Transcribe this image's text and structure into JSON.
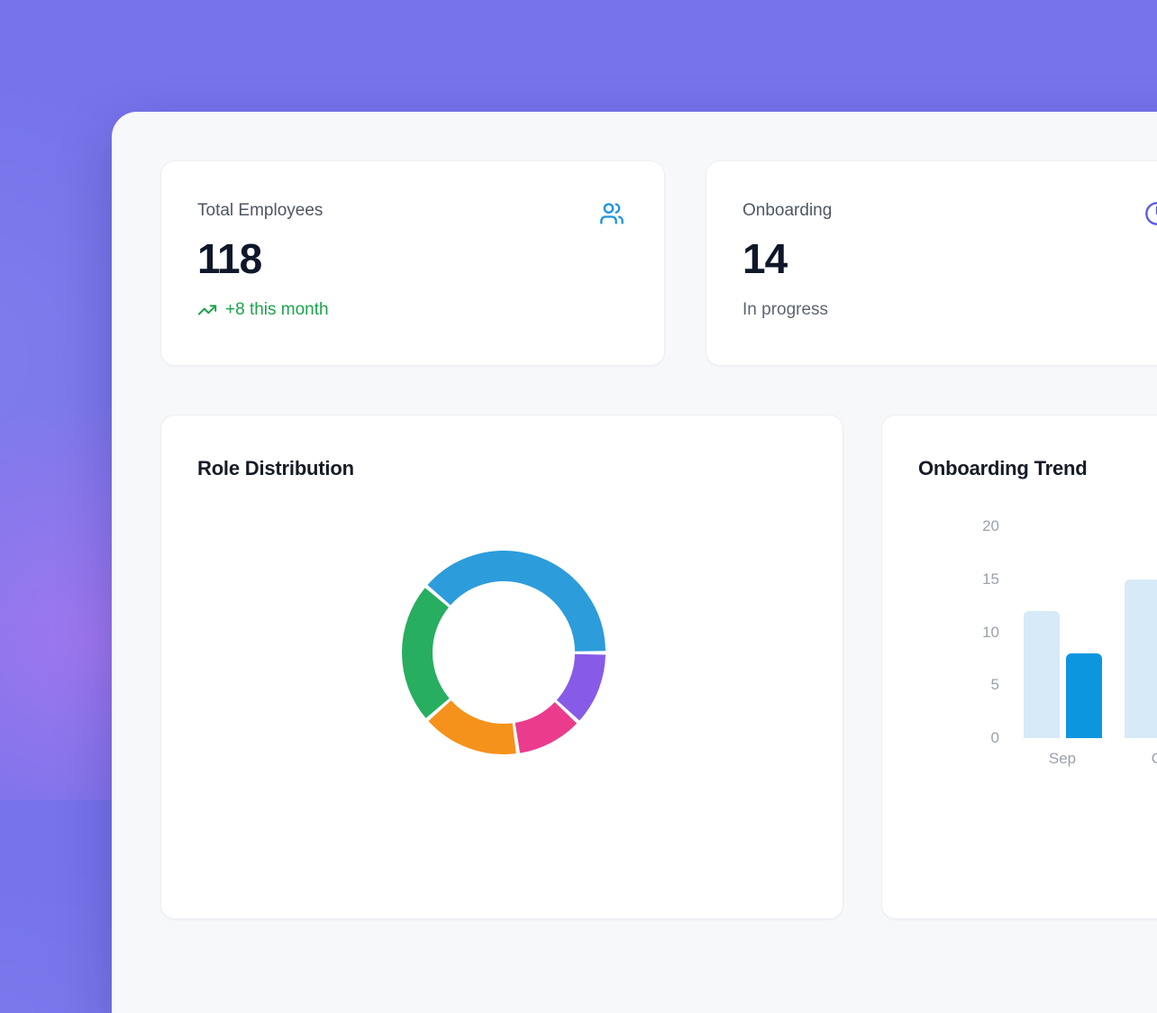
{
  "app": {
    "background_color": "#7673EB",
    "accent_blob_color": "#C67BF2",
    "panel_color": "#F7F8FA",
    "card_color": "#FFFFFF"
  },
  "stats": [
    {
      "label": "Total Employees",
      "value": "118",
      "sub_text": "+8 this month",
      "icon": "users-icon",
      "icon_color": "#1B93E3",
      "sub_color": "#1CA34A"
    },
    {
      "label": "Onboarding",
      "value": "14",
      "sub_text": "In progress",
      "icon": "clock-icon",
      "icon_color": "#5E5AE5",
      "sub_color": "#5D6570"
    }
  ],
  "chart_data": [
    {
      "type": "pie",
      "variant": "donut",
      "title": "Role Distribution",
      "legend": "none",
      "start_angle_deg": -49.5,
      "segments": [
        {
          "label": "segment-blue",
          "color": "#2D9CDB",
          "percent": 38.8
        },
        {
          "label": "segment-purple",
          "color": "#875BE8",
          "percent": 11.9
        },
        {
          "label": "segment-pink",
          "color": "#EB3B8D",
          "percent": 10.8
        },
        {
          "label": "segment-orange",
          "color": "#F5921B",
          "percent": 15.8
        },
        {
          "label": "segment-green",
          "color": "#27AE60",
          "percent": 22.7
        }
      ]
    },
    {
      "type": "bar",
      "title": "Onboarding Trend",
      "categories": [
        "Sep",
        "Oct"
      ],
      "series": [
        {
          "name": "series-light-blue",
          "color": "#D7EAF8",
          "values": [
            12,
            15
          ]
        },
        {
          "name": "series-dark-blue",
          "color": "#0C96E0",
          "values": [
            8,
            null
          ]
        }
      ],
      "ylim": [
        0,
        20
      ],
      "y_ticks": [
        0,
        5,
        10,
        15,
        20
      ],
      "grid": false,
      "legend": "none"
    }
  ]
}
